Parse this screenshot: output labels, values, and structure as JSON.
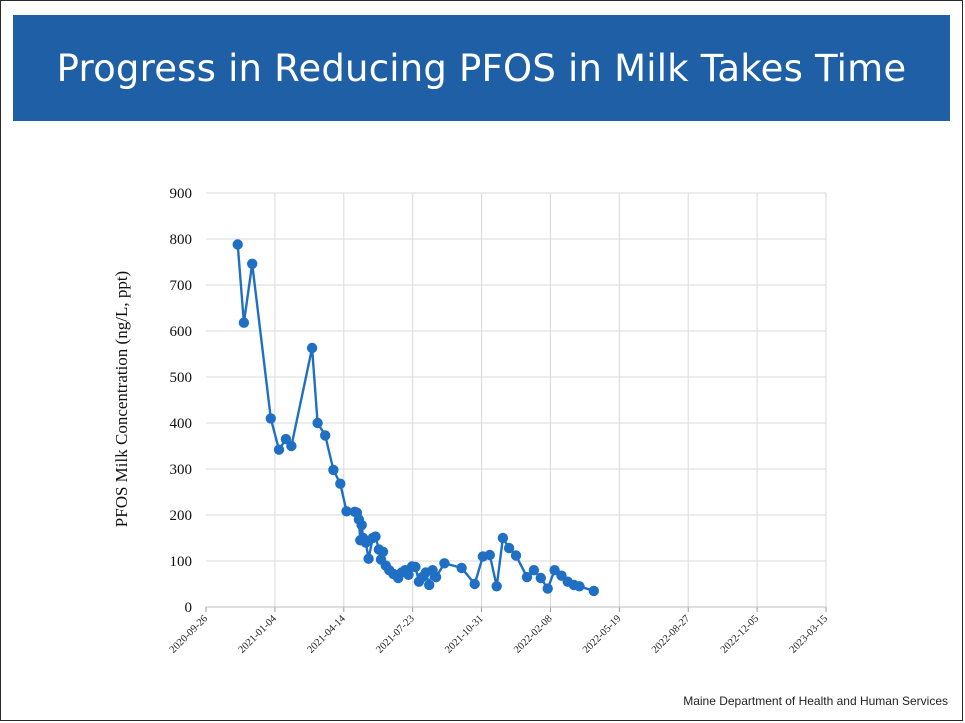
{
  "title": "Progress in Reducing PFOS in Milk Takes Time",
  "footer": "Maine Department of Health and Human Services",
  "colors": {
    "header": "#1f5fa6",
    "series": "#1f6fc5",
    "grid": "#d9d9d9"
  },
  "chart_data": {
    "type": "line",
    "title": "",
    "xlabel": "",
    "ylabel": "PFOS Milk Concentration (ng/L, ppt)",
    "ylim": [
      0,
      900
    ],
    "yticks": [
      0,
      100,
      200,
      300,
      400,
      500,
      600,
      700,
      800,
      900
    ],
    "xlim": [
      "2020-09-26",
      "2023-03-15"
    ],
    "xticks": [
      "2020-09-26",
      "2021-01-04",
      "2021-04-14",
      "2021-07-23",
      "2021-10-31",
      "2022-02-08",
      "2022-05-19",
      "2022-08-27",
      "2022-12-05",
      "2023-03-15"
    ],
    "grid": true,
    "markers": true,
    "series": [
      {
        "name": "",
        "points": [
          [
            "2020-11-11",
            788
          ],
          [
            "2020-11-20",
            618
          ],
          [
            "2020-12-02",
            746
          ],
          [
            "2020-12-29",
            410
          ],
          [
            "2021-01-10",
            342
          ],
          [
            "2021-01-20",
            365
          ],
          [
            "2021-01-28",
            350
          ],
          [
            "2021-02-27",
            563
          ],
          [
            "2021-03-07",
            400
          ],
          [
            "2021-03-18",
            373
          ],
          [
            "2021-03-30",
            298
          ],
          [
            "2021-04-09",
            268
          ],
          [
            "2021-04-18",
            208
          ],
          [
            "2021-04-30",
            207
          ],
          [
            "2021-05-03",
            205
          ],
          [
            "2021-05-06",
            190
          ],
          [
            "2021-05-08",
            145
          ],
          [
            "2021-05-10",
            178
          ],
          [
            "2021-05-12",
            150
          ],
          [
            "2021-05-16",
            140
          ],
          [
            "2021-05-20",
            105
          ],
          [
            "2021-05-26",
            150
          ],
          [
            "2021-05-30",
            153
          ],
          [
            "2021-06-04",
            125
          ],
          [
            "2021-06-07",
            103
          ],
          [
            "2021-06-10",
            120
          ],
          [
            "2021-06-14",
            90
          ],
          [
            "2021-06-19",
            80
          ],
          [
            "2021-06-25",
            72
          ],
          [
            "2021-07-02",
            63
          ],
          [
            "2021-07-07",
            75
          ],
          [
            "2021-07-12",
            80
          ],
          [
            "2021-07-17",
            70
          ],
          [
            "2021-07-22",
            88
          ],
          [
            "2021-07-27",
            87
          ],
          [
            "2021-08-01",
            55
          ],
          [
            "2021-08-06",
            65
          ],
          [
            "2021-08-11",
            75
          ],
          [
            "2021-08-16",
            48
          ],
          [
            "2021-08-21",
            80
          ],
          [
            "2021-08-26",
            65
          ],
          [
            "2021-09-07",
            95
          ],
          [
            "2021-10-02",
            85
          ],
          [
            "2021-10-21",
            50
          ],
          [
            "2021-11-02",
            110
          ],
          [
            "2021-11-12",
            113
          ],
          [
            "2021-11-22",
            45
          ],
          [
            "2021-12-01",
            150
          ],
          [
            "2021-12-10",
            128
          ],
          [
            "2021-12-20",
            112
          ],
          [
            "2022-01-05",
            65
          ],
          [
            "2022-01-15",
            80
          ],
          [
            "2022-01-25",
            63
          ],
          [
            "2022-02-04",
            40
          ],
          [
            "2022-02-14",
            80
          ],
          [
            "2022-02-24",
            68
          ],
          [
            "2022-03-05",
            55
          ],
          [
            "2022-03-14",
            48
          ],
          [
            "2022-03-22",
            45
          ],
          [
            "2022-04-12",
            35
          ]
        ]
      }
    ]
  }
}
